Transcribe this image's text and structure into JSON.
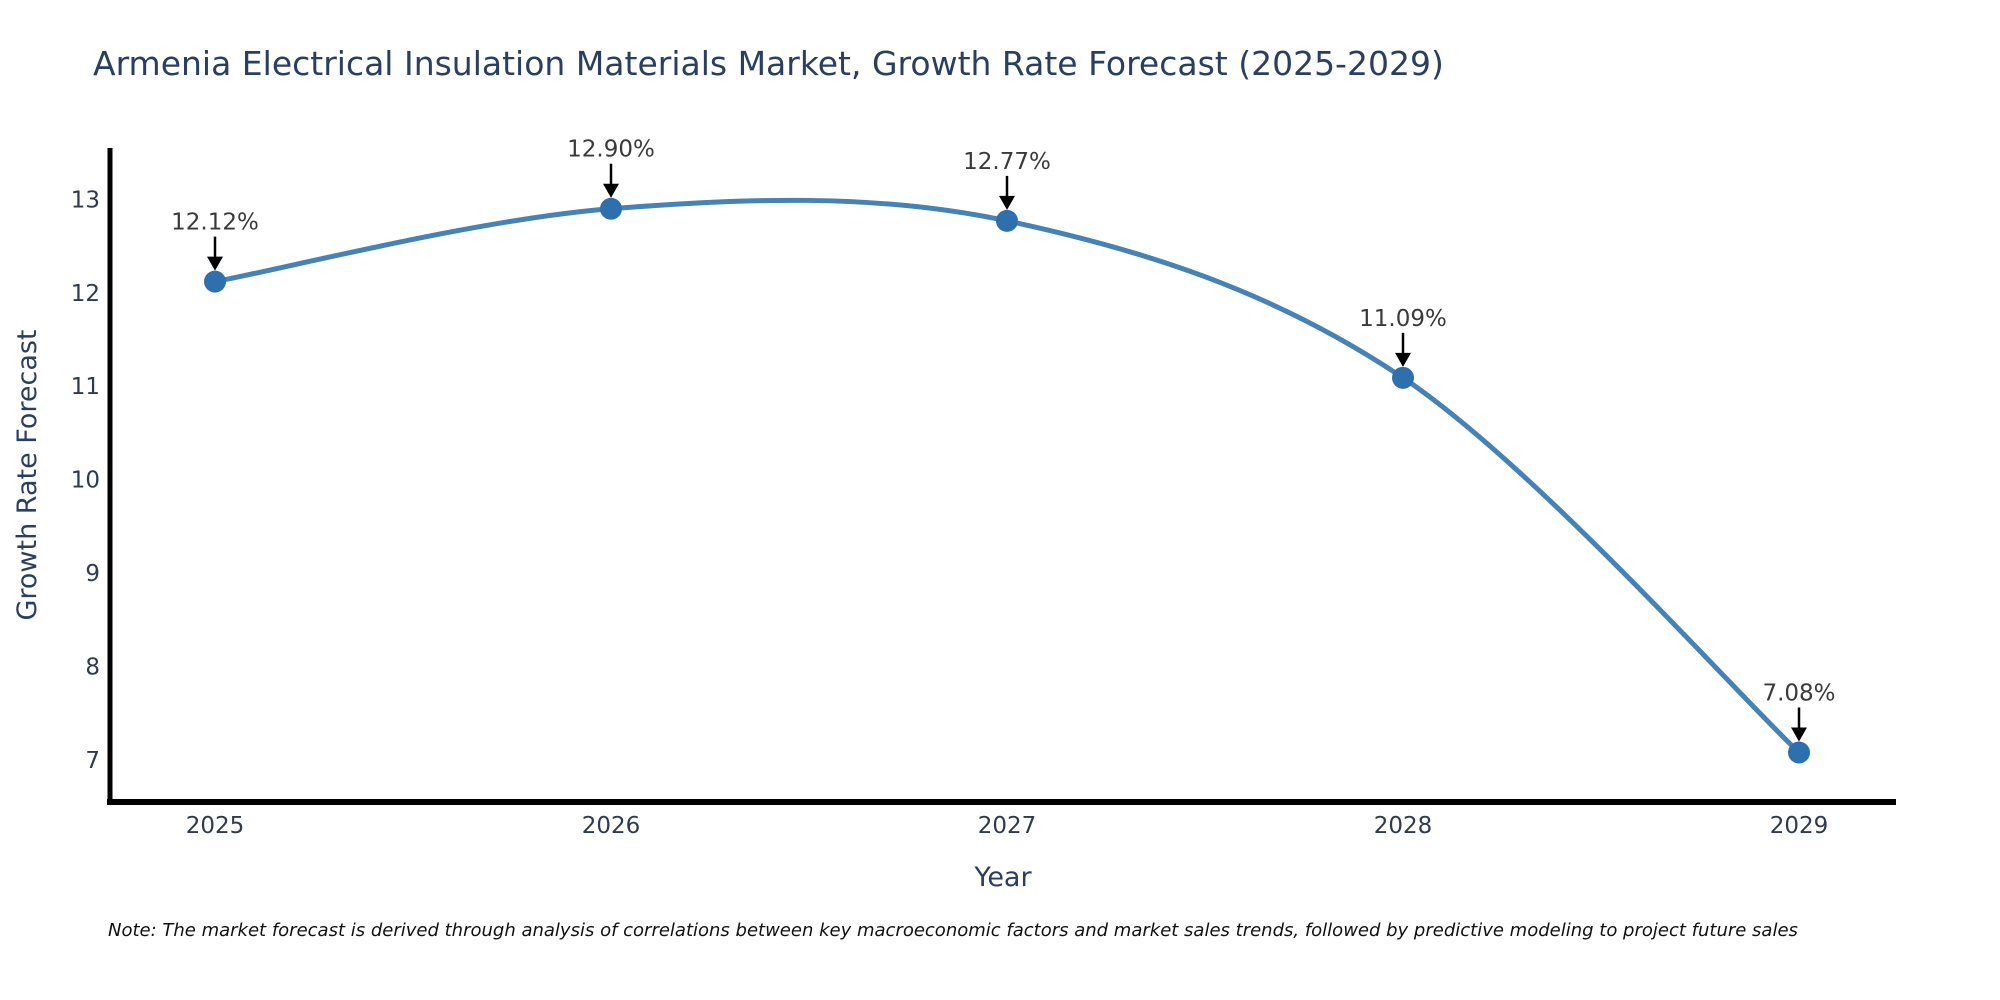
{
  "title": "Armenia Electrical Insulation Materials Market, Growth Rate Forecast (2025-2029)",
  "note": "Note: The market forecast is derived through analysis of correlations between key macroeconomic factors and market sales trends, followed by predictive modeling to project future sales",
  "chart_data": {
    "type": "line",
    "line_shape": "spline",
    "title": "Armenia Electrical Insulation Materials Market, Growth Rate Forecast (2025-2029)",
    "xlabel": "Year",
    "ylabel": "Growth Rate Forecast",
    "x": [
      2025,
      2026,
      2027,
      2028,
      2029
    ],
    "series": [
      {
        "name": "Growth Rate Forecast",
        "values": [
          12.12,
          12.9,
          12.77,
          11.09,
          7.08
        ]
      }
    ],
    "point_labels": [
      "12.12%",
      "12.90%",
      "12.77%",
      "11.09%",
      "7.08%"
    ],
    "xticks": [
      "2025",
      "2026",
      "2027",
      "2028",
      "2029"
    ],
    "yticks": [
      7,
      8,
      9,
      10,
      11,
      12,
      13
    ],
    "ylim": [
      6.55,
      13.55
    ],
    "grid": false,
    "legend": "none",
    "annotation_arrow_direction": "down",
    "colors": {
      "line": "#4682b4",
      "marker": "#2e6fad",
      "axis": "#000000",
      "label_text": "#2a3f5f",
      "annotation_text": "#3a3a3a",
      "arrow": "#000000"
    }
  }
}
